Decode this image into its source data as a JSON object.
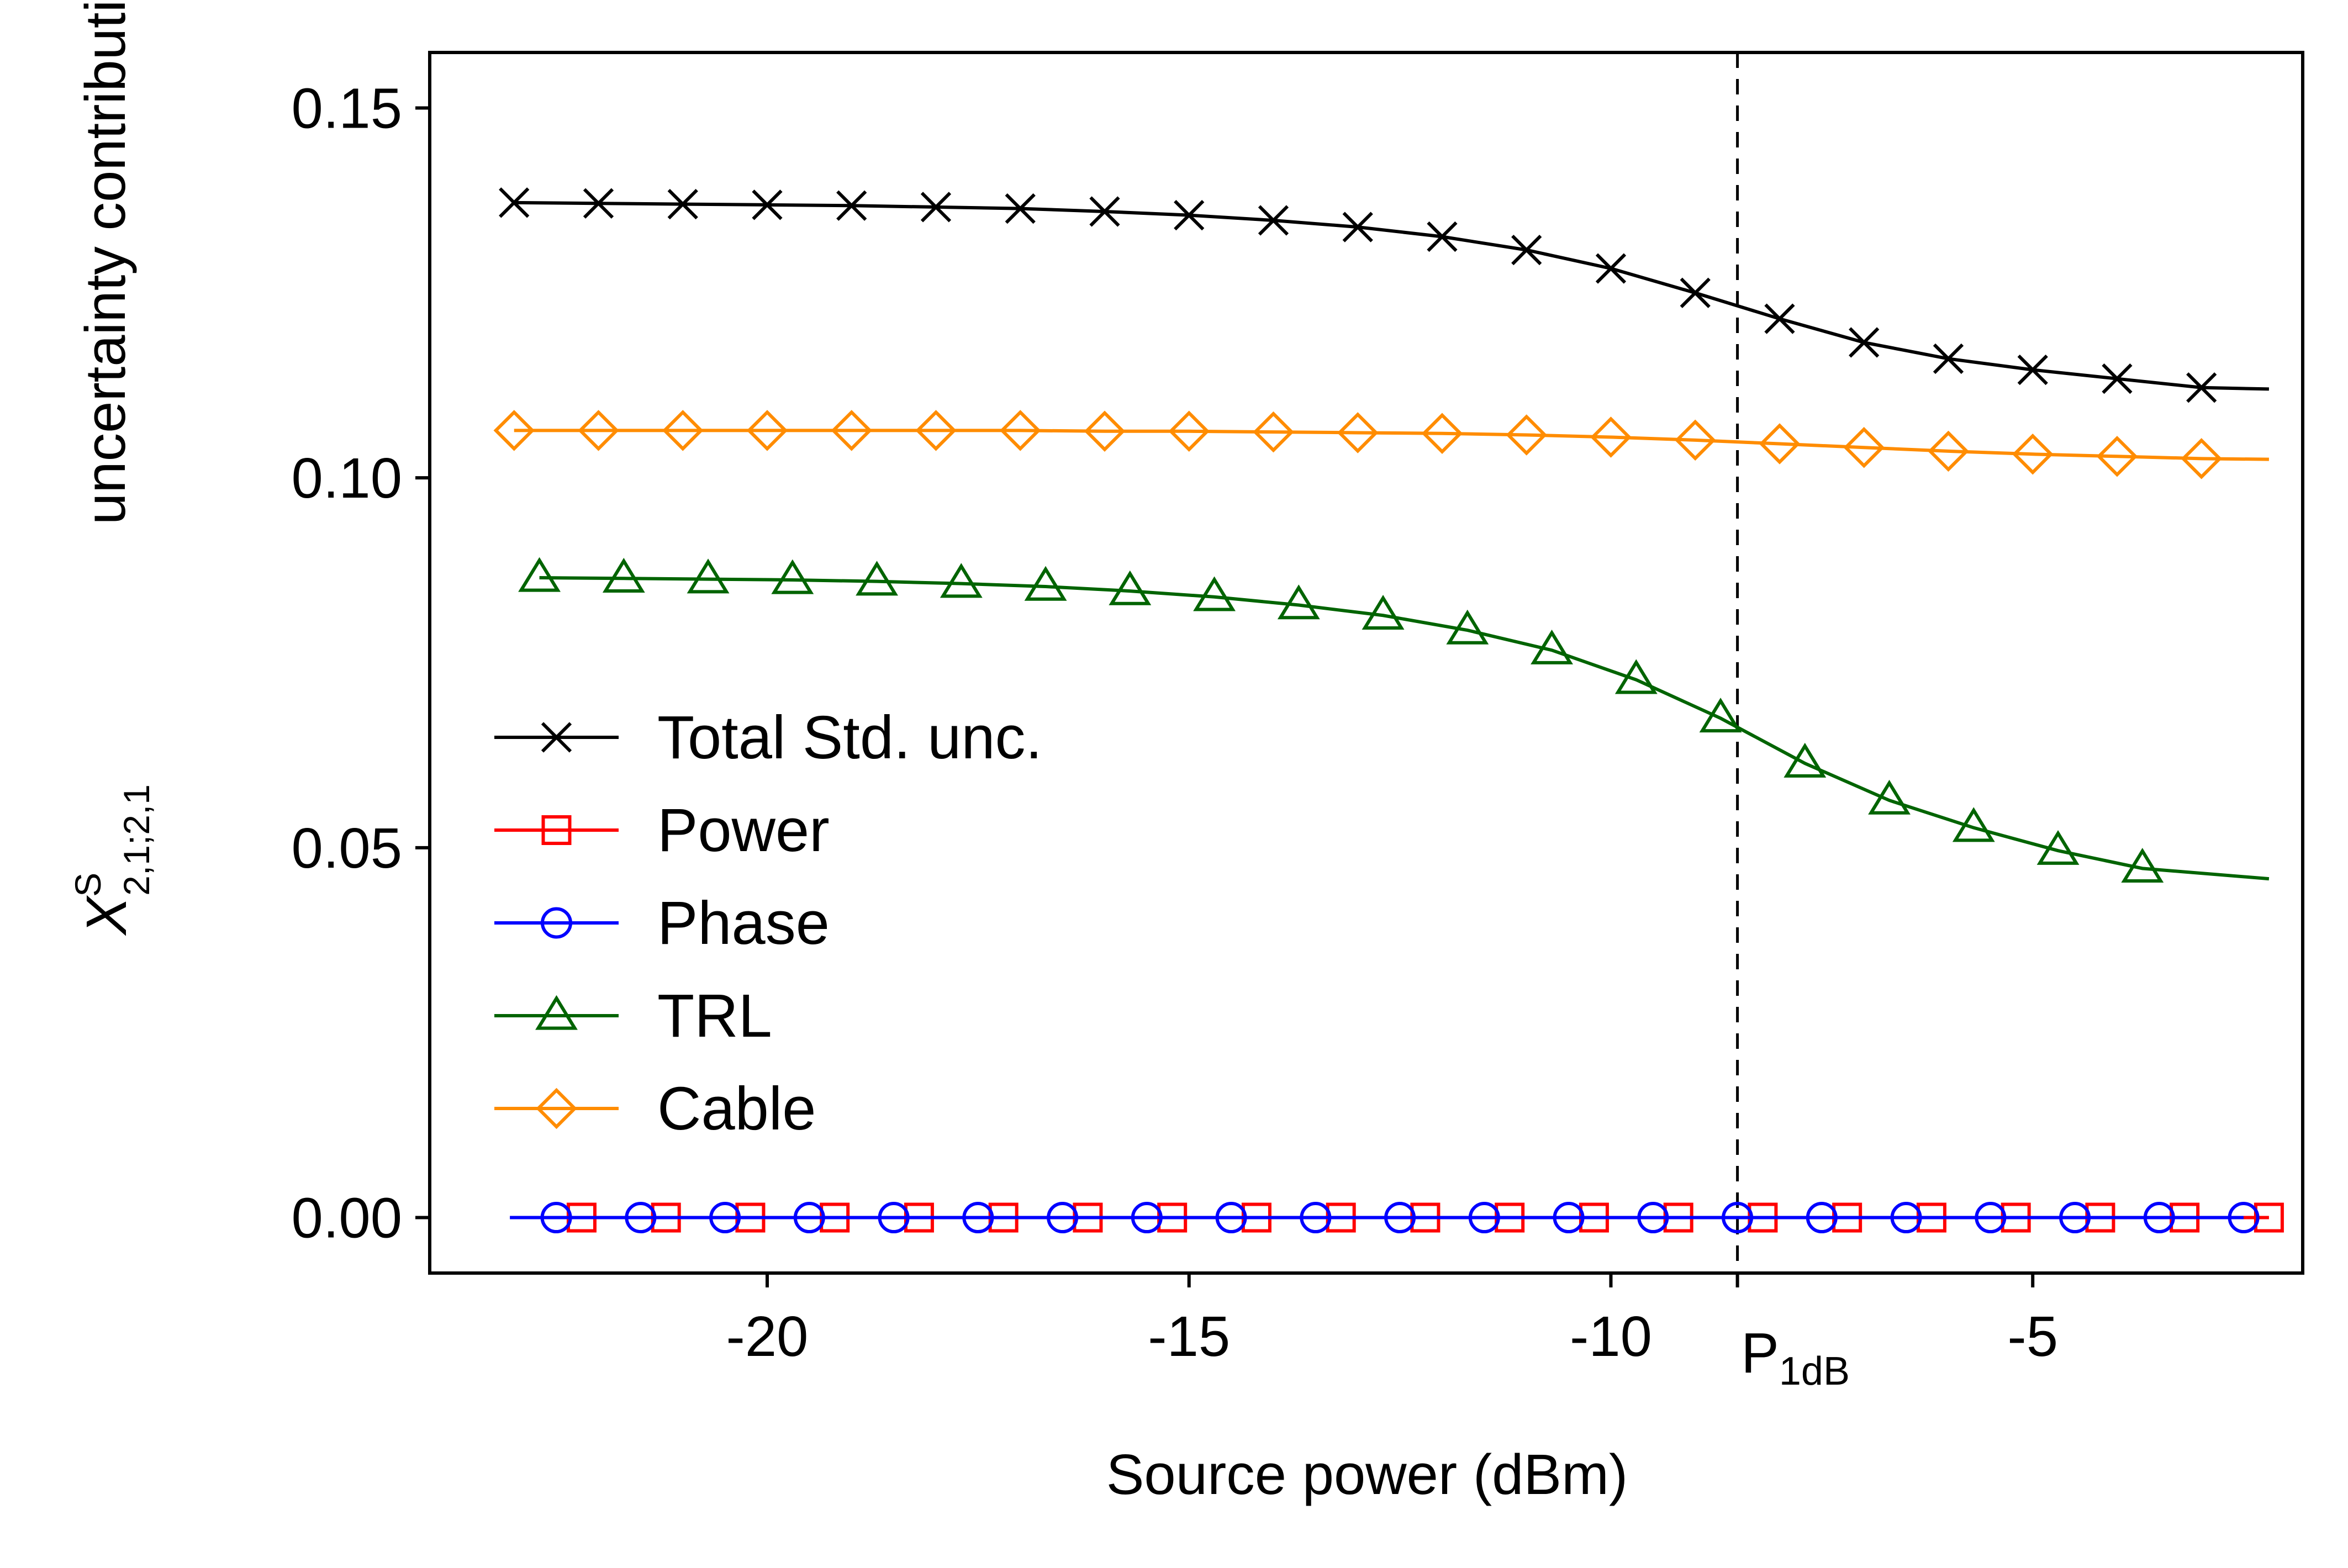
{
  "chart_data": {
    "type": "line",
    "title": "",
    "xlabel": "Source power (dBm)",
    "ylabel": "uncertainty contribution (dB)",
    "ylabel_math": {
      "base": "X",
      "superscript": "S",
      "subscript": "2,1;2,1"
    },
    "xlim": [
      -24.0,
      -1.8
    ],
    "ylim": [
      -0.0075,
      0.1575
    ],
    "xticks": [
      {
        "value": -20,
        "label": "-20"
      },
      {
        "value": -15,
        "label": "-15"
      },
      {
        "value": -10,
        "label": "-10"
      },
      {
        "value": -5,
        "label": "-5"
      }
    ],
    "yticks": [
      {
        "value": 0.15,
        "label": "0.15"
      },
      {
        "value": 0.1,
        "label": "0.10"
      },
      {
        "value": 0.05,
        "label": "0.05"
      },
      {
        "value": 0.0,
        "label": "0.00"
      }
    ],
    "reference_line": {
      "x": -8.5,
      "label_main": "P",
      "label_sub": "1dB",
      "style": "dashed",
      "color": "#000000"
    },
    "grid": false,
    "legend_position": "center-left",
    "series": [
      {
        "name": "Total Std. unc.",
        "color": "#000000",
        "marker": "x",
        "x": [
          -23.0,
          -22.0,
          -21.0,
          -20.0,
          -19.0,
          -18.0,
          -17.0,
          -16.0,
          -15.0,
          -14.0,
          -13.0,
          -12.0,
          -11.0,
          -10.0,
          -9.0,
          -8.0,
          -7.0,
          -6.0,
          -5.0,
          -4.0,
          -3.0
        ],
        "y": [
          0.1372,
          0.1371,
          0.137,
          0.1369,
          0.1368,
          0.1366,
          0.1364,
          0.136,
          0.1355,
          0.1348,
          0.1339,
          0.1326,
          0.1308,
          0.1283,
          0.125,
          0.1215,
          0.1183,
          0.1161,
          0.1146,
          0.1134,
          0.1122
        ]
      },
      {
        "name": "Power",
        "color": "#ff0000",
        "marker": "square",
        "x": [
          -22.2,
          -21.2,
          -20.2,
          -19.2,
          -18.2,
          -17.2,
          -16.2,
          -15.2,
          -14.2,
          -13.2,
          -12.2,
          -11.2,
          -10.2,
          -9.2,
          -8.2,
          -7.2,
          -6.2,
          -5.2,
          -4.2,
          -3.2,
          -2.2
        ],
        "y": [
          0.0,
          0.0,
          0.0,
          0.0,
          0.0,
          0.0,
          0.0,
          0.0,
          0.0,
          0.0,
          0.0,
          0.0,
          0.0,
          0.0,
          0.0,
          0.0,
          0.0,
          0.0,
          0.0,
          0.0,
          0.0
        ]
      },
      {
        "name": "Phase",
        "color": "#0000ff",
        "marker": "circle",
        "x": [
          -22.5,
          -21.5,
          -20.5,
          -19.5,
          -18.5,
          -17.5,
          -16.5,
          -15.5,
          -14.5,
          -13.5,
          -12.5,
          -11.5,
          -10.5,
          -9.5,
          -8.5,
          -7.5,
          -6.5,
          -5.5,
          -4.5,
          -3.5,
          -2.5
        ],
        "y": [
          0.0,
          0.0,
          0.0,
          0.0,
          0.0,
          0.0,
          0.0,
          0.0,
          0.0,
          0.0,
          0.0,
          0.0,
          0.0,
          0.0,
          0.0,
          0.0,
          0.0,
          0.0,
          0.0,
          0.0,
          0.0
        ]
      },
      {
        "name": "TRL",
        "color": "#006400",
        "marker": "triangle",
        "x": [
          -22.7,
          -21.7,
          -20.7,
          -19.7,
          -18.7,
          -17.7,
          -16.7,
          -15.7,
          -14.7,
          -13.7,
          -12.7,
          -11.7,
          -10.7,
          -9.7,
          -8.7,
          -7.7,
          -6.7,
          -5.7,
          -4.7,
          -3.7
        ],
        "y": [
          0.0865,
          0.0864,
          0.0863,
          0.0862,
          0.086,
          0.0857,
          0.0853,
          0.0847,
          0.0839,
          0.0828,
          0.0814,
          0.0794,
          0.0767,
          0.0727,
          0.0675,
          0.0614,
          0.0564,
          0.0527,
          0.0496,
          0.0472
        ]
      },
      {
        "name": "Cable",
        "color": "#ff8c00",
        "marker": "diamond",
        "x": [
          -23.0,
          -22.0,
          -21.0,
          -20.0,
          -19.0,
          -18.0,
          -17.0,
          -16.0,
          -15.0,
          -14.0,
          -13.0,
          -12.0,
          -11.0,
          -10.0,
          -9.0,
          -8.0,
          -7.0,
          -6.0,
          -5.0,
          -4.0,
          -3.0
        ],
        "y": [
          0.1064,
          0.1064,
          0.1064,
          0.1064,
          0.1064,
          0.1064,
          0.1064,
          0.1063,
          0.1063,
          0.1062,
          0.1061,
          0.106,
          0.1058,
          0.1055,
          0.1051,
          0.1046,
          0.1041,
          0.1036,
          0.1032,
          0.1029,
          0.1026
        ]
      }
    ]
  }
}
